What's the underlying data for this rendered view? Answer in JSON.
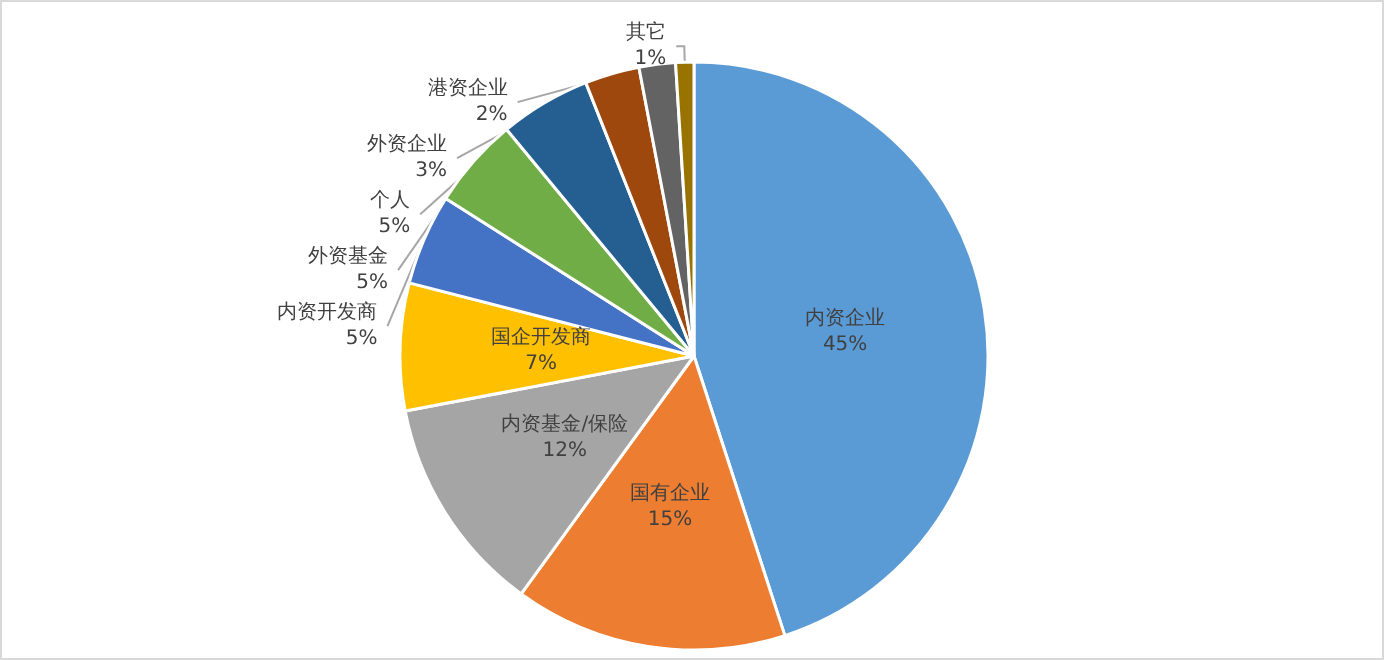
{
  "chart_data": {
    "type": "pie",
    "categories": [
      "内资企业",
      "国有企业",
      "内资基金/保险",
      "国企开发商",
      "内资开发商",
      "外资基金",
      "个人",
      "外资企业",
      "港资企业",
      "其它"
    ],
    "values": [
      45,
      15,
      12,
      7,
      5,
      5,
      5,
      3,
      2,
      1
    ],
    "colors": [
      "#5b9bd5",
      "#ed7d31",
      "#a5a5a5",
      "#ffc000",
      "#4472c4",
      "#70ad47",
      "#255e91",
      "#9e480e",
      "#636363",
      "#997300"
    ],
    "legend": false,
    "value_labels": [
      "45%",
      "15%",
      "12%",
      "7%",
      "5%",
      "5%",
      "5%",
      "3%",
      "2%",
      "1%"
    ]
  }
}
